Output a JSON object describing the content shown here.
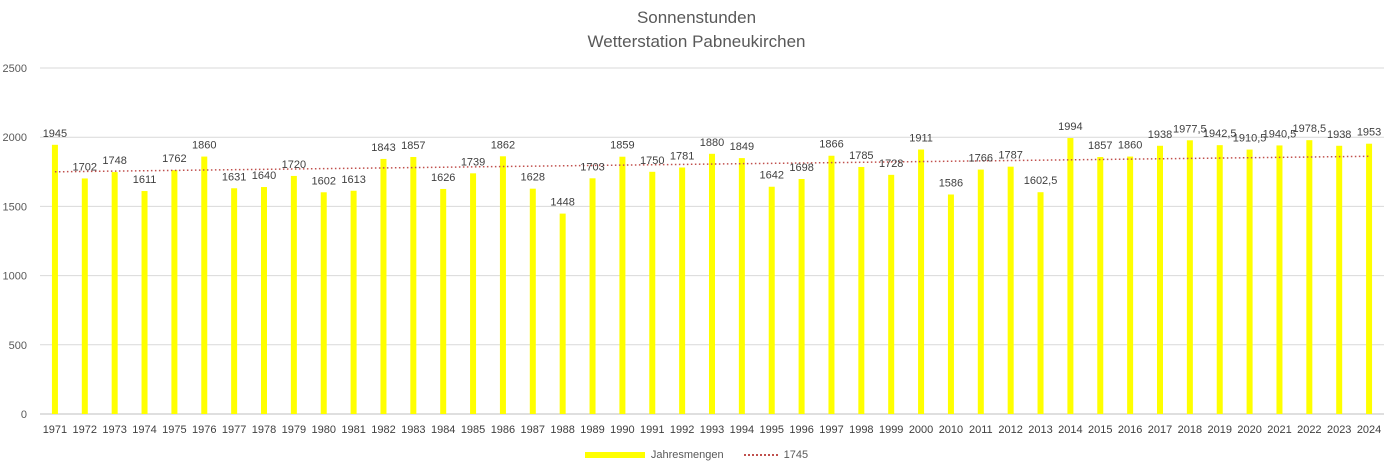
{
  "chart_data": {
    "type": "bar",
    "title": "Sonnenstunden",
    "subtitle": "Wetterstation Pabneukirchen",
    "categories": [
      "1971",
      "1972",
      "1973",
      "1974",
      "1975",
      "1976",
      "1977",
      "1978",
      "1979",
      "1980",
      "1981",
      "1982",
      "1983",
      "1984",
      "1985",
      "1986",
      "1987",
      "1988",
      "1989",
      "1990",
      "1991",
      "1992",
      "1993",
      "1994",
      "1995",
      "1996",
      "1997",
      "1998",
      "1999",
      "2000",
      "2010",
      "2011",
      "2012",
      "2013",
      "2014",
      "2015",
      "2016",
      "2017",
      "2018",
      "2019",
      "2020",
      "2021",
      "2022",
      "2023",
      "2024"
    ],
    "series": [
      {
        "name": "Jahresmengen",
        "color": "#FFFF00",
        "values": [
          1945,
          1702,
          1748,
          1611,
          1762,
          1860,
          1631,
          1640,
          1720,
          1602,
          1613,
          1843,
          1857,
          1626,
          1739,
          1862,
          1628,
          1448,
          1703,
          1859,
          1750,
          1781,
          1880,
          1849,
          1642,
          1698,
          1866,
          1785,
          1728,
          1911,
          1586,
          1766,
          1787,
          1602.5,
          1994,
          1857,
          1860,
          1938,
          1977.5,
          1942.5,
          1910.5,
          1940.5,
          1978.5,
          1938,
          1953
        ],
        "data_labels": [
          "1945",
          "1702",
          "1748",
          "1611",
          "1762",
          "1860",
          "1631",
          "1640",
          "1720",
          "1602",
          "1613",
          "1843",
          "1857",
          "1626",
          "1739",
          "1862",
          "1628",
          "1448",
          "1703",
          "1859",
          "1750",
          "1781",
          "1880",
          "1849",
          "1642",
          "1698",
          "1866",
          "1785",
          "1728",
          "1911",
          "1586",
          "1766",
          "1787",
          "1602,5",
          "1994",
          "1857",
          "1860",
          "1938",
          "1977,5",
          "1942,5",
          "1910,5",
          "1940,5",
          "1978,5",
          "1938",
          "1953"
        ]
      }
    ],
    "trendline": {
      "name": "1745",
      "type": "linear",
      "color": "#C0504D",
      "style": "dotted",
      "start": 1750,
      "end": 1862
    },
    "ylim": [
      0,
      2500
    ],
    "yticks": [
      0,
      500,
      1000,
      1500,
      2000,
      2500
    ],
    "grid": true,
    "legend": "bottom",
    "xlabel": "",
    "ylabel": ""
  }
}
